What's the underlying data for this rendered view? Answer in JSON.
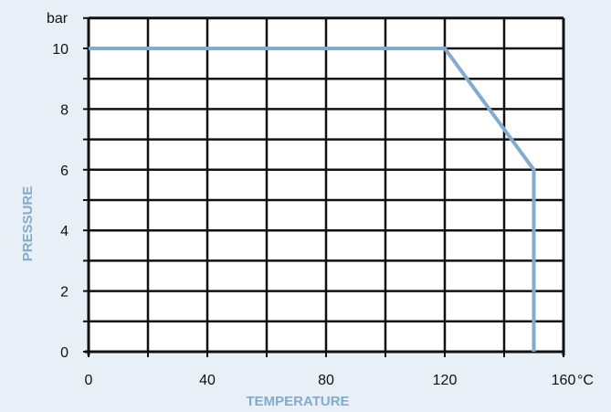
{
  "chart_data": {
    "type": "line",
    "xlabel": "TEMPERATURE",
    "ylabel": "PRESSURE",
    "x_unit": "°C",
    "y_unit": "bar",
    "xlim": [
      0,
      160
    ],
    "ylim": [
      0,
      11
    ],
    "x_ticks": [
      0,
      40,
      80,
      120,
      160
    ],
    "y_ticks": [
      0,
      2,
      4,
      6,
      8,
      10
    ],
    "x_tick_labels": [
      "0",
      "40",
      "80",
      "120",
      "160"
    ],
    "y_tick_labels": [
      "0",
      "2",
      "4",
      "6",
      "8",
      "10"
    ],
    "grid": true,
    "series": [
      {
        "x": [
          0,
          120,
          150,
          150
        ],
        "y": [
          10,
          10,
          6,
          0
        ]
      }
    ]
  },
  "colors": {
    "background": "#e8eff6",
    "plot_area": "#ffffff",
    "grid": "#111111",
    "series": "#82abce",
    "axis_title": "#82abce"
  }
}
